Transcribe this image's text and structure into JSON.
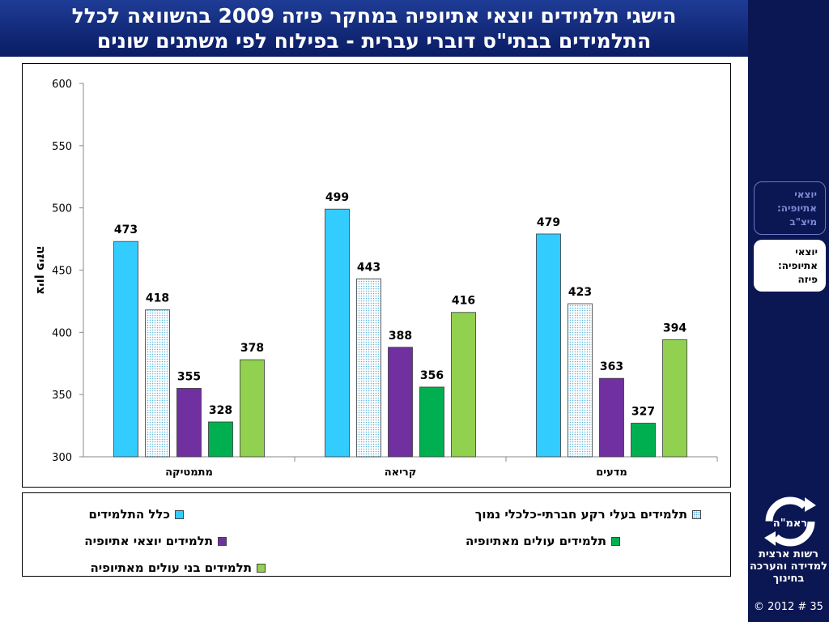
{
  "slide": {
    "title_line1": "הישגי תלמידים יוצאי אתיופיה במחקר פיזה 2009 בהשוואה לכלל",
    "title_line2": "התלמידים בבתי\"ס דוברי עברית - בפילוח לפי משתנים שונים"
  },
  "sidebar": {
    "nav": [
      {
        "label": "יוצאי אתיופיה: מיצ\"ב",
        "active": false
      },
      {
        "label": "יוצאי אתיופיה: פיזה",
        "active": true
      }
    ],
    "logo_text": "ראמ\"ה",
    "org_name": "רשות ארצית למדידה והערכה בחינוך",
    "footer": "© 2012 # 35"
  },
  "chart_data": {
    "type": "bar",
    "ylabel": "ציון פיזה",
    "ylim": [
      300,
      600
    ],
    "yticks": [
      300,
      350,
      400,
      450,
      500,
      550,
      600
    ],
    "grid": false,
    "legend_position": "bottom",
    "categories": [
      "מתמטיקה",
      "קריאה",
      "מדעים"
    ],
    "series": [
      {
        "name": "כלל התלמידים",
        "color": "#33ccff",
        "pattern": "solid",
        "values": [
          473,
          499,
          479
        ]
      },
      {
        "name": "תלמידים בעלי רקע חברתי-כלכלי נמוך",
        "color": "#ffffff",
        "pattern": "dots",
        "values": [
          418,
          443,
          423
        ]
      },
      {
        "name": "תלמידים יוצאי אתיופיה",
        "color": "#7030a0",
        "pattern": "solid",
        "values": [
          355,
          388,
          363
        ]
      },
      {
        "name": "תלמידים עולים מאתיופיה",
        "color": "#00b050",
        "pattern": "solid",
        "values": [
          328,
          356,
          327
        ]
      },
      {
        "name": "תלמידים בני עולים מאתיופיה",
        "color": "#92d050",
        "pattern": "solid",
        "values": [
          378,
          416,
          394
        ]
      }
    ]
  }
}
